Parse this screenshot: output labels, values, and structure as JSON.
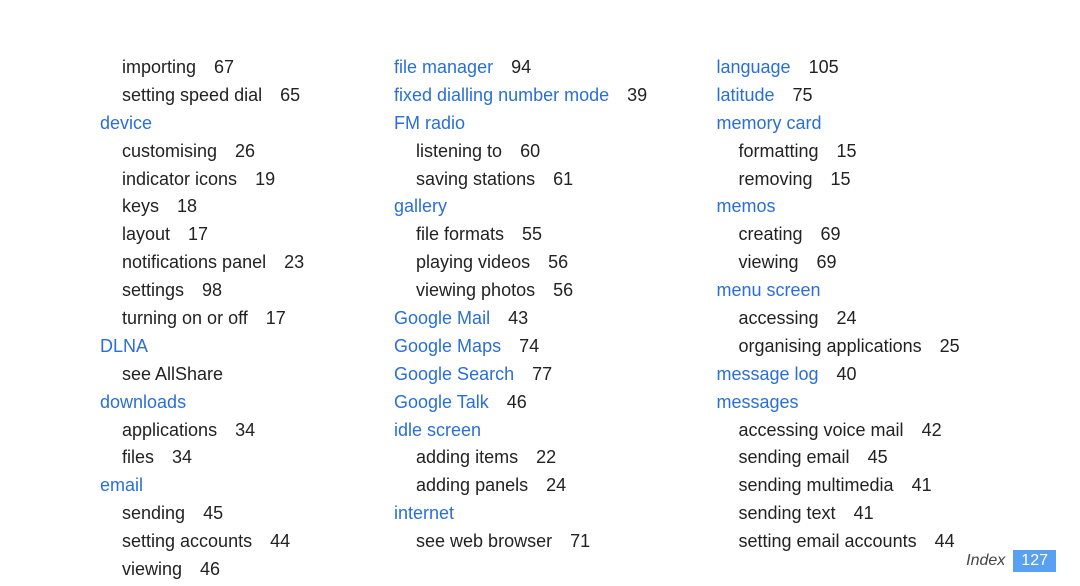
{
  "footer": {
    "label": "Index",
    "page": "127"
  },
  "col1": {
    "pre": [
      {
        "label": "importing",
        "page": "67"
      },
      {
        "label": "setting speed dial",
        "page": "65"
      }
    ],
    "device_h": "device",
    "device": [
      {
        "label": "customising",
        "page": "26"
      },
      {
        "label": "indicator icons",
        "page": "19"
      },
      {
        "label": "keys",
        "page": "18"
      },
      {
        "label": "layout",
        "page": "17"
      },
      {
        "label": "notifications panel",
        "page": "23"
      },
      {
        "label": "settings",
        "page": "98"
      },
      {
        "label": "turning on or off",
        "page": "17"
      }
    ],
    "dlna_h": "DLNA",
    "dlna": [
      {
        "label": "see AllShare",
        "page": ""
      }
    ],
    "downloads_h": "downloads",
    "downloads": [
      {
        "label": "applications",
        "page": "34"
      },
      {
        "label": "files",
        "page": "34"
      }
    ],
    "email_h": "email",
    "email": [
      {
        "label": "sending",
        "page": "45"
      },
      {
        "label": "setting accounts",
        "page": "44"
      },
      {
        "label": "viewing",
        "page": "46"
      }
    ]
  },
  "col2": {
    "file_manager": {
      "label": "file manager",
      "page": "94"
    },
    "fdn": {
      "label": "fixed dialling number mode",
      "page": "39"
    },
    "fm_h": "FM radio",
    "fm": [
      {
        "label": "listening to",
        "page": "60"
      },
      {
        "label": "saving stations",
        "page": "61"
      }
    ],
    "gallery_h": "gallery",
    "gallery": [
      {
        "label": "file formats",
        "page": "55"
      },
      {
        "label": "playing videos",
        "page": "56"
      },
      {
        "label": "viewing photos",
        "page": "56"
      }
    ],
    "gmail": {
      "label": "Google Mail",
      "page": "43"
    },
    "gmaps": {
      "label": "Google Maps",
      "page": "74"
    },
    "gsearch": {
      "label": "Google Search",
      "page": "77"
    },
    "gtalk": {
      "label": "Google Talk",
      "page": "46"
    },
    "idle_h": "idle screen",
    "idle": [
      {
        "label": "adding items",
        "page": "22"
      },
      {
        "label": "adding panels",
        "page": "24"
      }
    ],
    "internet_h": "internet",
    "internet": [
      {
        "label": "see web browser",
        "page": "71"
      }
    ]
  },
  "col3": {
    "language": {
      "label": "language",
      "page": "105"
    },
    "latitude": {
      "label": "latitude",
      "page": "75"
    },
    "memcard_h": "memory card",
    "memcard": [
      {
        "label": "formatting",
        "page": "15"
      },
      {
        "label": "removing",
        "page": "15"
      }
    ],
    "memos_h": "memos",
    "memos": [
      {
        "label": "creating",
        "page": "69"
      },
      {
        "label": "viewing",
        "page": "69"
      }
    ],
    "menu_h": "menu screen",
    "menu": [
      {
        "label": "accessing",
        "page": "24"
      },
      {
        "label": "organising applications",
        "page": "25"
      }
    ],
    "msglog": {
      "label": "message log",
      "page": "40"
    },
    "messages_h": "messages",
    "messages": [
      {
        "label": "accessing voice mail",
        "page": "42"
      },
      {
        "label": "sending email",
        "page": "45"
      },
      {
        "label": "sending multimedia",
        "page": "41"
      },
      {
        "label": "sending text",
        "page": "41"
      },
      {
        "label": "setting email accounts",
        "page": "44"
      }
    ]
  }
}
